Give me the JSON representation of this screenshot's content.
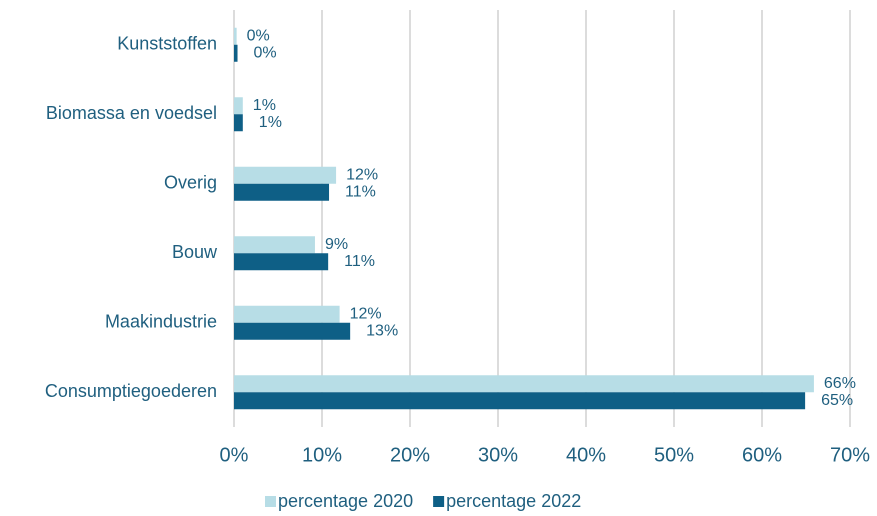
{
  "chart_data": {
    "type": "hbar",
    "categories": [
      "Kunststoffen",
      "Biomassa en voedsel",
      "Overig",
      "Bouw",
      "Maakindustrie",
      "Consumptiegoederen"
    ],
    "series": [
      {
        "name": "percentage 2020",
        "color": "#b7dde6",
        "values": [
          0.3,
          1,
          11.6,
          9.2,
          12,
          65.9
        ],
        "value_labels": [
          "0%",
          "1%",
          "12%",
          "9%",
          "12%",
          "66%"
        ]
      },
      {
        "name": "percentage 2022",
        "color": "#0e5f86",
        "values": [
          0.4,
          1,
          10.8,
          10.7,
          13.2,
          64.9
        ],
        "value_labels": [
          "0%",
          "1%",
          "11%",
          "11%",
          "13%",
          "65%"
        ]
      }
    ],
    "xlim": [
      0,
      70
    ],
    "xticks": [
      {
        "value": 0,
        "label": "0%"
      },
      {
        "value": 10,
        "label": "10%"
      },
      {
        "value": 20,
        "label": "20%"
      },
      {
        "value": 30,
        "label": "30%"
      },
      {
        "value": 40,
        "label": "40%"
      },
      {
        "value": 50,
        "label": "50%"
      },
      {
        "value": 60,
        "label": "60%"
      },
      {
        "value": 70,
        "label": "70%"
      }
    ],
    "grid": true,
    "legend": "bottom"
  }
}
